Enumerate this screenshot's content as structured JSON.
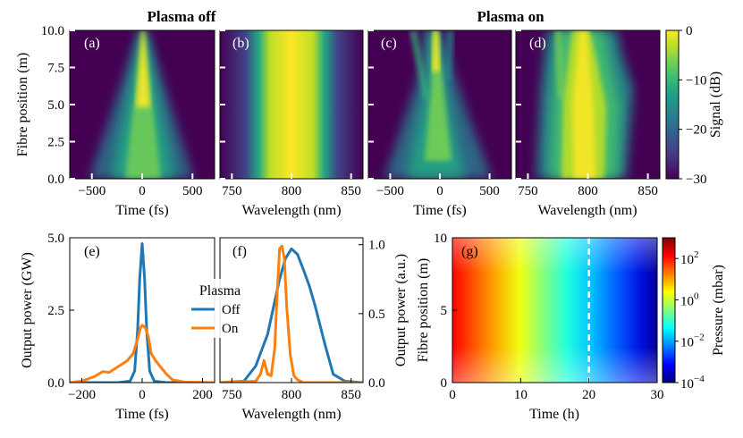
{
  "section_titles": {
    "off": "Plasma off",
    "on": "Plasma on"
  },
  "colors": {
    "blue": "#1f77b4",
    "orange": "#ff7f0e",
    "viridis": [
      "#440154",
      "#482475",
      "#414487",
      "#355f8d",
      "#2a788e",
      "#21918c",
      "#22a884",
      "#44bf70",
      "#7ad151",
      "#bddf26",
      "#fde725"
    ],
    "jet": [
      "#00007f",
      "#0000ff",
      "#007fff",
      "#00ffff",
      "#7fff7f",
      "#ffff00",
      "#ff7f00",
      "#ff0000",
      "#7f0000"
    ]
  },
  "chart_data": [
    {
      "id": "a",
      "type": "heatmap",
      "panel_label": "(a)",
      "xlabel": "Time (fs)",
      "ylabel": "Fibre position (m)",
      "xlim": [
        -720,
        720
      ],
      "ylim": [
        0,
        10
      ],
      "xticks": [
        -500,
        0,
        500
      ],
      "xtick_labels": [
        "−500",
        "0",
        "500"
      ],
      "yticks": [
        0,
        2.5,
        5,
        7.5,
        10
      ],
      "ytick_labels": [
        "0.0",
        "2.5",
        "5.0",
        "7.5",
        "10.0"
      ],
      "pattern": "cone",
      "width_at_0m_fs": 600,
      "width_at_10m_fs": 40
    },
    {
      "id": "b",
      "type": "heatmap",
      "panel_label": "(b)",
      "xlabel": "Wavelength (nm)",
      "xlim": [
        740,
        860
      ],
      "ylim": [
        0,
        10
      ],
      "xticks": [
        750,
        800,
        850
      ],
      "xtick_labels": [
        "750",
        "800",
        "850"
      ],
      "pattern": "constant-band",
      "center_nm": 800,
      "half_width_nm": 35
    },
    {
      "id": "c",
      "type": "heatmap",
      "panel_label": "(c)",
      "xlabel": "Time (fs)",
      "xlim": [
        -720,
        720
      ],
      "ylim": [
        0,
        10
      ],
      "xticks": [
        -500,
        0,
        500
      ],
      "xtick_labels": [
        "−500",
        "0",
        "500"
      ],
      "pattern": "distorted-cone",
      "width_at_0m_fs": 600,
      "width_at_10m_fs": 60
    },
    {
      "id": "d",
      "type": "heatmap",
      "panel_label": "(d)",
      "xlabel": "Wavelength (nm)",
      "xlim": [
        740,
        860
      ],
      "ylim": [
        0,
        10
      ],
      "xticks": [
        750,
        800,
        850
      ],
      "xtick_labels": [
        "750",
        "800",
        "850"
      ],
      "pattern": "blue-shifted-band",
      "center_nm": 800
    },
    {
      "id": "signal_colorbar",
      "type": "colorbar",
      "label": "Signal (dB)",
      "cmap": "viridis",
      "range": [
        -30,
        0
      ],
      "ticks": [
        0,
        -10,
        -20,
        -30
      ],
      "tick_labels": [
        "0",
        "−10",
        "−20",
        "−30"
      ]
    },
    {
      "id": "e",
      "type": "line",
      "panel_label": "(e)",
      "xlabel": "Time (fs)",
      "ylabel": "Output power (GW)",
      "xlim": [
        -240,
        240
      ],
      "ylim": [
        0,
        5
      ],
      "xticks": [
        -200,
        0,
        200
      ],
      "xtick_labels": [
        "−200",
        "0",
        "200"
      ],
      "yticks": [
        0,
        2.5,
        5
      ],
      "ytick_labels": [
        "0.0",
        "2.5",
        "5.0"
      ],
      "legend": {
        "title": "Plasma",
        "entries": [
          "Off",
          "On"
        ],
        "loc": "center"
      },
      "series": [
        {
          "name": "Off",
          "color": "blue",
          "x": [
            -240,
            -80,
            -40,
            -25,
            -15,
            -8,
            0,
            8,
            15,
            25,
            40,
            80,
            240
          ],
          "y": [
            0,
            0,
            0.05,
            0.4,
            1.8,
            3.6,
            4.8,
            3.6,
            1.8,
            0.4,
            0.05,
            0,
            0
          ]
        },
        {
          "name": "On",
          "color": "orange",
          "x": [
            -240,
            -200,
            -160,
            -130,
            -110,
            -80,
            -50,
            -30,
            -15,
            -5,
            0,
            10,
            20,
            30,
            45,
            60,
            80,
            100,
            140,
            240
          ],
          "y": [
            0,
            0.05,
            0.2,
            0.38,
            0.35,
            0.55,
            0.75,
            1.0,
            1.5,
            1.9,
            1.98,
            1.9,
            1.6,
            1.0,
            0.75,
            0.55,
            0.3,
            0.1,
            0.02,
            0
          ]
        }
      ]
    },
    {
      "id": "f",
      "type": "line",
      "panel_label": "(f)",
      "xlabel": "Wavelength (nm)",
      "ylabel": "Output power (a.u.)",
      "xlim": [
        740,
        860
      ],
      "ylim": [
        0,
        1.05
      ],
      "xticks": [
        750,
        800,
        850
      ],
      "xtick_labels": [
        "750",
        "800",
        "850"
      ],
      "yticks": [
        0,
        0.5,
        1.0
      ],
      "ytick_labels": [
        "0.0",
        "0.5",
        "1.0"
      ],
      "y_axis_side": "right",
      "series": [
        {
          "name": "Off",
          "color": "blue",
          "x": [
            740,
            760,
            770,
            780,
            785,
            790,
            795,
            800,
            805,
            810,
            815,
            820,
            828,
            835,
            845,
            860
          ],
          "y": [
            0,
            0.01,
            0.12,
            0.35,
            0.55,
            0.75,
            0.9,
            0.97,
            0.93,
            0.82,
            0.7,
            0.55,
            0.28,
            0.06,
            0.01,
            0
          ]
        },
        {
          "name": "On",
          "color": "orange",
          "x": [
            740,
            770,
            774,
            777,
            780,
            783,
            786,
            788,
            790,
            792,
            794,
            796,
            799,
            802,
            805,
            810,
            830,
            860
          ],
          "y": [
            0,
            0.01,
            0.06,
            0.16,
            0.06,
            0.05,
            0.25,
            0.65,
            0.97,
            0.99,
            0.9,
            0.55,
            0.2,
            0.05,
            0.02,
            0,
            0,
            0
          ]
        }
      ]
    },
    {
      "id": "g",
      "type": "heatmap",
      "panel_label": "(g)",
      "xlabel": "Time (h)",
      "ylabel": "Fibre position (m)",
      "xlim": [
        0,
        30
      ],
      "ylim": [
        0,
        10
      ],
      "xticks": [
        0,
        10,
        20,
        30
      ],
      "xtick_labels": [
        "0",
        "10",
        "20",
        "30"
      ],
      "yticks": [
        0,
        5,
        10
      ],
      "ytick_labels": [
        "0",
        "5",
        "10"
      ],
      "marker_line_x": 20,
      "cmap": "jet"
    },
    {
      "id": "pressure_colorbar",
      "type": "colorbar",
      "label": "Pressure (mbar)",
      "cmap": "jet",
      "scale": "log",
      "range_exponent": [
        -4,
        3
      ],
      "tick_bases": [
        "10",
        "10",
        "10",
        "10"
      ],
      "tick_exponents": [
        "2",
        "0",
        "−2",
        "−4"
      ]
    }
  ]
}
